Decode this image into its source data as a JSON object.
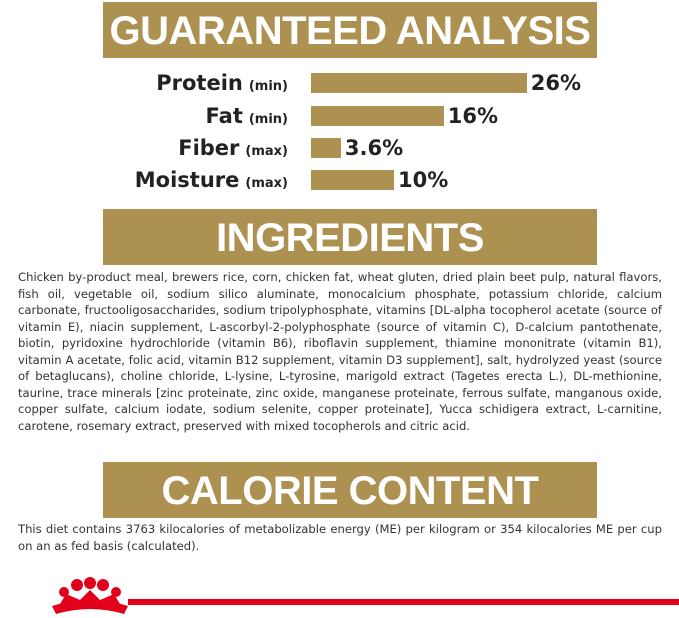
{
  "guaranteed_analysis": {
    "title": "GUARANTEED ANALYSIS",
    "items": [
      {
        "name": "Protein",
        "qualifier": "(min)",
        "value": 26,
        "value_label": "26%"
      },
      {
        "name": "Fat",
        "qualifier": "(min)",
        "value": 16,
        "value_label": "16%"
      },
      {
        "name": "Fiber",
        "qualifier": "(max)",
        "value": 3.6,
        "value_label": "3.6%"
      },
      {
        "name": "Moisture",
        "qualifier": "(max)",
        "value": 10,
        "value_label": "10%"
      }
    ]
  },
  "ingredients": {
    "title": "INGREDIENTS",
    "text": "Chicken by-product meal, brewers rice, corn, chicken fat, wheat gluten, dried plain beet pulp, natural flavors, fish oil, vegetable oil, sodium silico aluminate, monocalcium phosphate, potassium chloride, calcium carbonate, fructooligosaccharides, sodium tripolyphosphate, vitamins [DL-alpha tocopherol acetate (source of vitamin E), niacin supplement, L-ascorbyl-2-polyphosphate (source of vitamin C), D-calcium pantothenate, biotin, pyridoxine hydrochloride (vitamin B6), riboflavin supplement, thiamine mononitrate (vitamin B1), vitamin A acetate, folic acid, vitamin B12 supplement, vitamin D3 supplement], salt, hydrolyzed yeast (source of betaglucans), choline chloride, L-lysine, L-tyrosine, marigold extract (Tagetes erecta L.), DL-methionine, taurine, trace minerals [zinc proteinate, zinc oxide, manganese proteinate, ferrous sulfate, manganous oxide, copper sulfate, calcium iodate, sodium selenite, copper proteinate], Yucca schidigera extract, L-carnitine, carotene, rosemary extract, preserved with mixed tocopherols and citric acid."
  },
  "calorie_content": {
    "title": "CALORIE CONTENT",
    "text": "This diet contains 3763 kilocalories of metabolizable energy (ME) per kilogram or 354 kilocalories ME per cup on an as fed basis (calculated)."
  }
}
